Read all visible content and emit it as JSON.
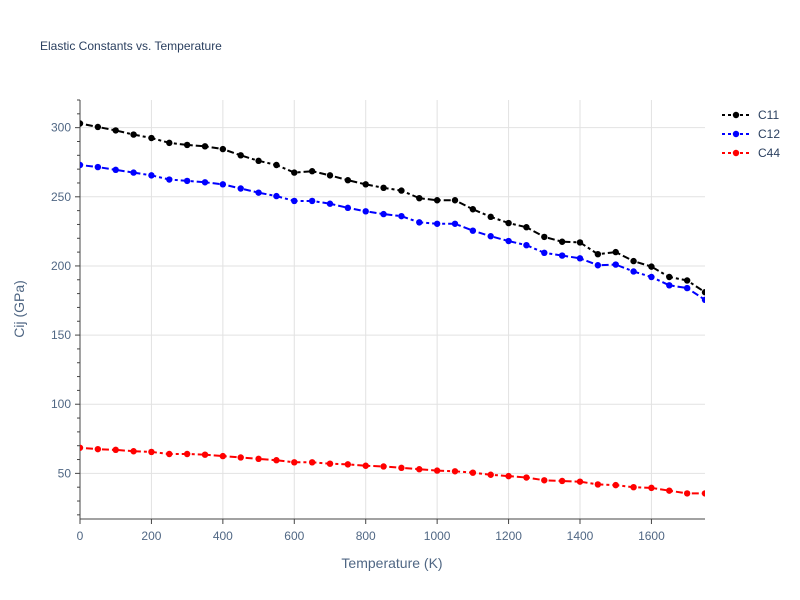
{
  "chart_data": {
    "type": "line",
    "title": "Elastic Constants vs. Temperature",
    "xlabel": "Temperature (K)",
    "ylabel": "Cij (GPa)",
    "xlim": [
      0,
      1750
    ],
    "ylim": [
      17,
      320
    ],
    "xticks": [
      0,
      200,
      400,
      600,
      800,
      1000,
      1200,
      1400,
      1600
    ],
    "yticks": [
      50,
      100,
      150,
      200,
      250,
      300
    ],
    "grid": true,
    "legend_position": "top-right",
    "x": [
      0,
      50,
      100,
      150,
      200,
      250,
      300,
      350,
      400,
      450,
      500,
      550,
      600,
      650,
      700,
      750,
      800,
      850,
      900,
      950,
      1000,
      1050,
      1100,
      1150,
      1200,
      1250,
      1300,
      1350,
      1400,
      1450,
      1500,
      1550,
      1600,
      1650,
      1700,
      1750
    ],
    "series": [
      {
        "name": "C11",
        "color": "#000000",
        "values": [
          303,
          300.5,
          298,
          295,
          292.5,
          289,
          287.5,
          286.5,
          284.5,
          280,
          276,
          273,
          267.5,
          268.5,
          265.5,
          262,
          259,
          256.5,
          254.5,
          249,
          247.5,
          247.5,
          241,
          235.5,
          231,
          228,
          221,
          217.5,
          217,
          208.5,
          210,
          203.5,
          199.5,
          192,
          189.5,
          181
        ]
      },
      {
        "name": "C12",
        "color": "#0000ff",
        "values": [
          273,
          271.5,
          269.5,
          267.5,
          265.5,
          262.5,
          261.5,
          260.5,
          259,
          256,
          253,
          250.5,
          247,
          247,
          245,
          242,
          239.5,
          237.5,
          236,
          231.5,
          230.5,
          230.5,
          225.5,
          221.5,
          218,
          215,
          209.5,
          207.5,
          205.5,
          200.5,
          201,
          196,
          192,
          186,
          184,
          175.5
        ]
      },
      {
        "name": "C44",
        "color": "#ff0000",
        "values": [
          68.5,
          67.5,
          67,
          66,
          65.5,
          64,
          64,
          63.5,
          62.5,
          61.5,
          60.5,
          59.5,
          58,
          58,
          57,
          56.5,
          55.5,
          55,
          54,
          53,
          52,
          51.5,
          50.5,
          49,
          48,
          47,
          45,
          44.5,
          44,
          42,
          41.5,
          40,
          39.5,
          37.5,
          35.5,
          35.5
        ]
      }
    ]
  }
}
